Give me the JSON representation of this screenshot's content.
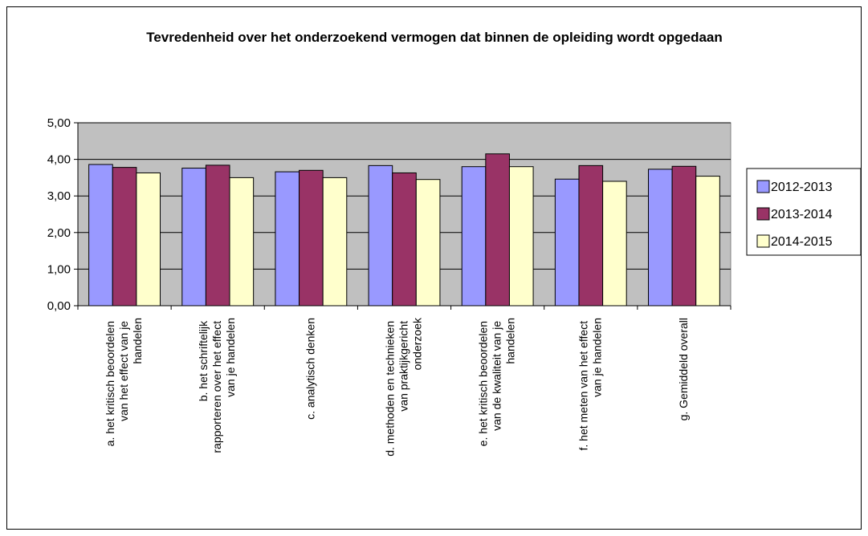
{
  "chart_data": {
    "type": "bar",
    "title": "Tevredenheid over het onderzoekend vermogen dat binnen de opleiding wordt opgedaan",
    "categories": [
      "a. het kritisch beoordelen van het effect van je handelen",
      "b. het schriftelijk rapporteren over het effect van je handelen",
      "c. analytisch denken",
      "d. methoden en technieken van praktijkgericht onderzoek",
      "e. het kritisch beoordelen van de kwaliteit van je handelen",
      "f. het meten van het effect van je handelen",
      "g. Gemiddeld overall"
    ],
    "series": [
      {
        "name": "2012-2013",
        "color": "#9999ff",
        "values": [
          3.86,
          3.76,
          3.66,
          3.83,
          3.8,
          3.46,
          3.73
        ]
      },
      {
        "name": "2013-2014",
        "color": "#993366",
        "values": [
          3.78,
          3.84,
          3.7,
          3.63,
          4.15,
          3.83,
          3.81
        ]
      },
      {
        "name": "2014-2015",
        "color": "#ffffcc",
        "values": [
          3.63,
          3.5,
          3.5,
          3.45,
          3.8,
          3.4,
          3.54
        ]
      }
    ],
    "ylim": [
      0,
      5
    ],
    "yticks": [
      {
        "value": 0,
        "label": "0,00"
      },
      {
        "value": 1,
        "label": "1,00"
      },
      {
        "value": 2,
        "label": "2,00"
      },
      {
        "value": 3,
        "label": "3,00"
      },
      {
        "value": 4,
        "label": "4,00"
      },
      {
        "value": 5,
        "label": "5,00"
      }
    ],
    "grid": true,
    "legend": "right"
  }
}
